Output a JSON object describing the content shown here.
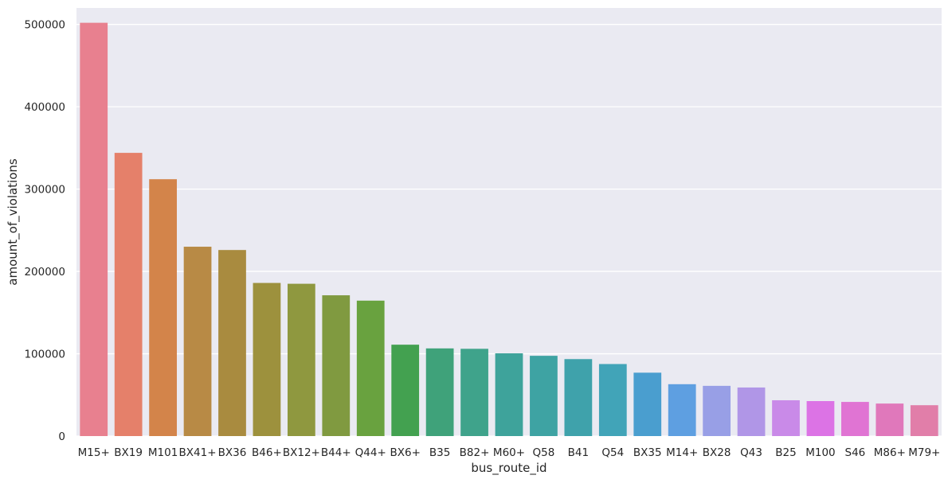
{
  "chart_data": {
    "type": "bar",
    "title": "",
    "xlabel": "bus_route_id",
    "ylabel": "amount_of_violations",
    "categories": [
      "M15+",
      "BX19",
      "M101",
      "BX41+",
      "BX36",
      "B46+",
      "BX12+",
      "B44+",
      "Q44+",
      "BX6+",
      "B35",
      "B82+",
      "M60+",
      "Q58",
      "B41",
      "Q54",
      "BX35",
      "M14+",
      "BX28",
      "Q43",
      "B25",
      "M100",
      "S46",
      "M86+",
      "M79+"
    ],
    "values": [
      502000,
      344000,
      312000,
      230000,
      226000,
      186000,
      185000,
      171000,
      164500,
      111000,
      106500,
      106000,
      100500,
      97500,
      93500,
      87500,
      77000,
      63000,
      61000,
      59000,
      43500,
      42500,
      41500,
      39500,
      37500
    ],
    "colors": [
      "#e8808f",
      "#e5806a",
      "#d3844a",
      "#b88a45",
      "#a98b3f",
      "#9d913d",
      "#8f983f",
      "#809a40",
      "#69a23f",
      "#43a150",
      "#3fa27a",
      "#3fa38b",
      "#3ea39b",
      "#3ea3a3",
      "#3fa2ab",
      "#41a4b8",
      "#4a9ecf",
      "#5e9fe1",
      "#989fe6",
      "#b096e7",
      "#c98ae8",
      "#dc73e5",
      "#e074d3",
      "#e078bb",
      "#e17ea9"
    ],
    "ylim": [
      0,
      520000
    ],
    "yticks": [
      0,
      100000,
      200000,
      300000,
      400000,
      500000
    ],
    "grid": true,
    "background": "#eaeaf2",
    "legend": "none"
  }
}
